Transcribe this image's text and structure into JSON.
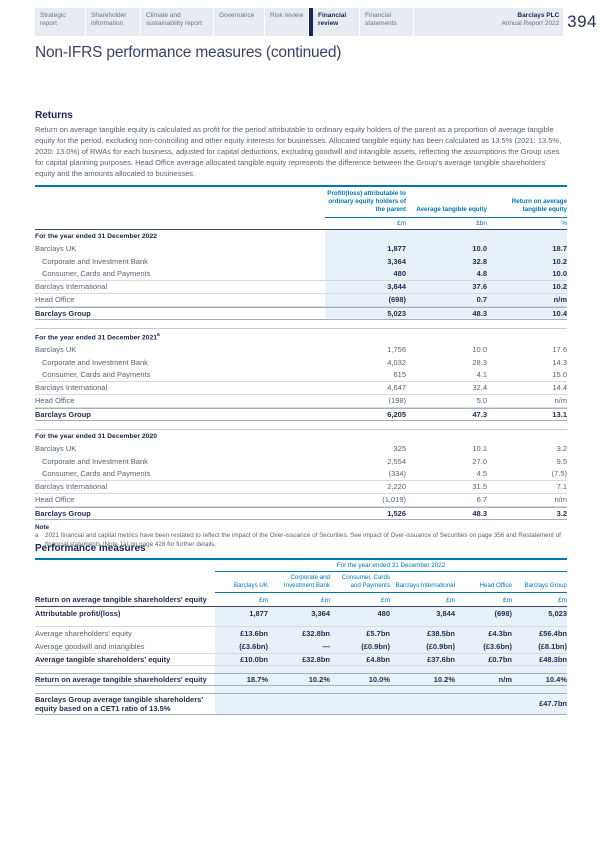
{
  "header": {
    "tabs": [
      {
        "label": "Strategic report",
        "active": false
      },
      {
        "label": "Shareholder information",
        "active": false
      },
      {
        "label": "Climate and sustainability report",
        "active": false
      },
      {
        "label": "Governance",
        "active": false
      },
      {
        "label": "Risk review",
        "active": false
      },
      {
        "label": "Financial review",
        "active": true
      },
      {
        "label": "Financial statements",
        "active": false
      }
    ],
    "brand": "Barclays PLC",
    "brand_sub": "Annual Report 2022",
    "page_number": "394"
  },
  "title": "Non-IFRS performance measures (continued)",
  "returns": {
    "heading": "Returns",
    "intro": "Return on average tangible equity is calculated as profit for the period attributable to ordinary equity holders of the parent as a proportion of average tangible equity for the period, excluding non-controlling and other equity interests for businesses. Allocated tangible equity has been calculated as 13.5% (2021: 13.5%, 2020: 13.0%) of RWAs for each business, adjusted for capital deductions, excluding goodwill and intangible assets, reflecting the assumptions the Group uses for capital planning purposes. Head Office average allocated tangible equity represents the difference between the Group's average tangible shareholders' equity and the amounts allocated to businesses."
  },
  "returns_table": {
    "col_headers": [
      "Profit/(loss) attributable to ordinary equity holders of the parent",
      "Average tangible equity",
      "Return on average tangible equity"
    ],
    "units": [
      "£m",
      "£bn",
      "%"
    ],
    "sections": [
      {
        "period": "For the year ended 31 December 2022",
        "note_ref": "",
        "shaded": true,
        "rows": [
          {
            "label": "Barclays UK",
            "indent": false,
            "bold": false,
            "values": [
              "1,877",
              "10.0",
              "18.7"
            ]
          },
          {
            "label": "Corporate and Investment Bank",
            "indent": true,
            "bold": false,
            "values": [
              "3,364",
              "32.8",
              "10.2"
            ]
          },
          {
            "label": "Consumer, Cards and Payments",
            "indent": true,
            "bold": false,
            "values": [
              "480",
              "4.8",
              "10.0"
            ]
          },
          {
            "label": "Barclays International",
            "indent": false,
            "bold": false,
            "values": [
              "3,844",
              "37.6",
              "10.2"
            ]
          },
          {
            "label": "Head Office",
            "indent": false,
            "bold": false,
            "values": [
              "(698)",
              "0.7",
              "n/m"
            ]
          },
          {
            "label": "Barclays Group",
            "indent": false,
            "bold": true,
            "values": [
              "5,023",
              "48.3",
              "10.4"
            ]
          }
        ]
      },
      {
        "period": "For the year ended 31 December 2021",
        "note_ref": "a",
        "shaded": false,
        "rows": [
          {
            "label": "Barclays UK",
            "indent": false,
            "bold": false,
            "values": [
              "1,756",
              "10.0",
              "17.6"
            ]
          },
          {
            "label": "Corporate and Investment Bank",
            "indent": true,
            "bold": false,
            "values": [
              "4,032",
              "28.3",
              "14.3"
            ]
          },
          {
            "label": "Consumer, Cards and Payments",
            "indent": true,
            "bold": false,
            "values": [
              "615",
              "4.1",
              "15.0"
            ]
          },
          {
            "label": "Barclays International",
            "indent": false,
            "bold": false,
            "values": [
              "4,647",
              "32.4",
              "14.4"
            ]
          },
          {
            "label": "Head Office",
            "indent": false,
            "bold": false,
            "values": [
              "(198)",
              "5.0",
              "n/m"
            ]
          },
          {
            "label": "Barclays Group",
            "indent": false,
            "bold": true,
            "values": [
              "6,205",
              "47.3",
              "13.1"
            ]
          }
        ]
      },
      {
        "period": "For the year ended 31 December 2020",
        "note_ref": "",
        "shaded": false,
        "rows": [
          {
            "label": "Barclays UK",
            "indent": false,
            "bold": false,
            "values": [
              "325",
              "10.1",
              "3.2"
            ]
          },
          {
            "label": "Corporate and Investment Bank",
            "indent": true,
            "bold": false,
            "values": [
              "2,554",
              "27.0",
              "9.5"
            ]
          },
          {
            "label": "Consumer, Cards and Payments",
            "indent": true,
            "bold": false,
            "values": [
              "(334)",
              "4.5",
              "(7.5)"
            ]
          },
          {
            "label": "Barclays International",
            "indent": false,
            "bold": false,
            "values": [
              "2,220",
              "31.5",
              "7.1"
            ]
          },
          {
            "label": "Head Office",
            "indent": false,
            "bold": false,
            "values": [
              "(1,019)",
              "6.7",
              "n/m"
            ]
          },
          {
            "label": "Barclays Group",
            "indent": false,
            "bold": true,
            "values": [
              "1,526",
              "48.3",
              "3.2"
            ]
          }
        ]
      }
    ]
  },
  "note": {
    "heading": "Note",
    "ref": "a",
    "text": "2021 financial and capital metrics have been restated to reflect the impact of the Over-issuance of Securities. See impact of Over-issuance of Securities on page 356 and Restatement of financial statements (Note 1a) on page 428 for further details."
  },
  "performance": {
    "heading": "Performance measures",
    "span_header": "For the year ended 31 December 2022",
    "row_header": "Return on average tangible shareholders' equity",
    "columns": [
      "Barclays UK",
      "Corporate and Investment Bank",
      "Consumer, Cards and Payments",
      "Barclays International",
      "Head Office",
      "Barclays Group"
    ],
    "units": [
      "£m",
      "£m",
      "£m",
      "£m",
      "£m",
      "£m"
    ],
    "rows": [
      {
        "label": "Attributable profit/(loss)",
        "bold_label": true,
        "values": [
          "1,877",
          "3,364",
          "480",
          "3,844",
          "(698)",
          "5,023"
        ]
      },
      {
        "label": "Average shareholders' equity",
        "bold_label": false,
        "values": [
          "£13.6bn",
          "£32.8bn",
          "£5.7bn",
          "£38.5bn",
          "£4.3bn",
          "£56.4bn"
        ]
      },
      {
        "label": "Average goodwill and intangibles",
        "bold_label": false,
        "values": [
          "(£3.6bn)",
          "—",
          "(£0.9bn)",
          "(£0.9bn)",
          "(£3.6bn)",
          "(£8.1bn)"
        ]
      },
      {
        "label": "Average tangible shareholders' equity",
        "bold_label": true,
        "values": [
          "£10.0bn",
          "£32.8bn",
          "£4.8bn",
          "£37.6bn",
          "£0.7bn",
          "£48.3bn"
        ]
      },
      {
        "label": "Return on average tangible shareholders' equity",
        "bold_label": true,
        "values": [
          "18.7%",
          "10.2%",
          "10.0%",
          "10.2%",
          "n/m",
          "10.4%"
        ]
      },
      {
        "label": "Barclays Group average tangible shareholders' equity based on a CET1 ratio of 13.5%",
        "bold_label": true,
        "values": [
          "",
          "",
          "",
          "",
          "",
          "£47.7bn"
        ]
      }
    ]
  },
  "colors": {
    "accent_blue": "#0076b6",
    "navy": "#1b2653",
    "shade": "#e8f1f7"
  }
}
